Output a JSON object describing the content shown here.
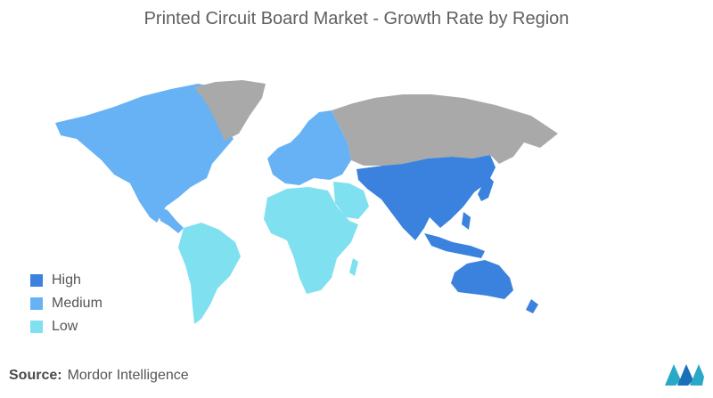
{
  "title": "Printed Circuit Board Market - Growth Rate by Region",
  "legend": [
    {
      "label": "High",
      "color": "#3a82dd"
    },
    {
      "label": "Medium",
      "color": "#67b2f5"
    },
    {
      "label": "Low",
      "color": "#7fe0ef"
    }
  ],
  "no_data_color": "#a9a9a9",
  "regions": [
    {
      "name": "North America",
      "level": "Medium"
    },
    {
      "name": "Europe",
      "level": "Medium"
    },
    {
      "name": "Asia-Pacific",
      "level": "High"
    },
    {
      "name": "South America",
      "level": "Low"
    },
    {
      "name": "Africa",
      "level": "Low"
    },
    {
      "name": "Middle East",
      "level": "Low"
    },
    {
      "name": "Russia",
      "level": "No Data"
    },
    {
      "name": "Greenland",
      "level": "No Data"
    }
  ],
  "source": {
    "prefix": "Source:",
    "text": "Mordor Intelligence"
  },
  "logo": {
    "icon": "mordor-intelligence-logo"
  }
}
